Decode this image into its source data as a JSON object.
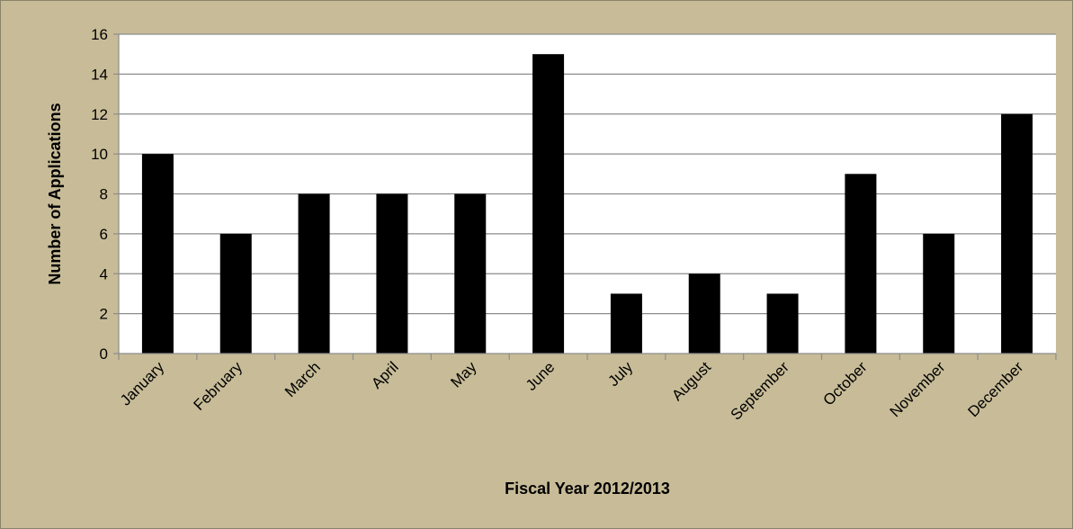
{
  "chart_data": {
    "type": "bar",
    "title": "",
    "xlabel": "Fiscal Year 2012/2013",
    "ylabel": "Number of Applications",
    "categories": [
      "January",
      "February",
      "March",
      "April",
      "May",
      "June",
      "July",
      "August",
      "September",
      "October",
      "November",
      "December"
    ],
    "values": [
      10,
      6,
      8,
      8,
      8,
      15,
      3,
      4,
      3,
      9,
      6,
      12
    ],
    "ylim": [
      0,
      16
    ],
    "yticks": [
      0,
      2,
      4,
      6,
      8,
      10,
      12,
      14,
      16
    ],
    "grid": true,
    "legend": "none",
    "colors": {
      "bar": "#000000",
      "plot_background": "#ffffff",
      "chart_background": "#c8bc98",
      "gridline": "#8c8c8c"
    }
  }
}
